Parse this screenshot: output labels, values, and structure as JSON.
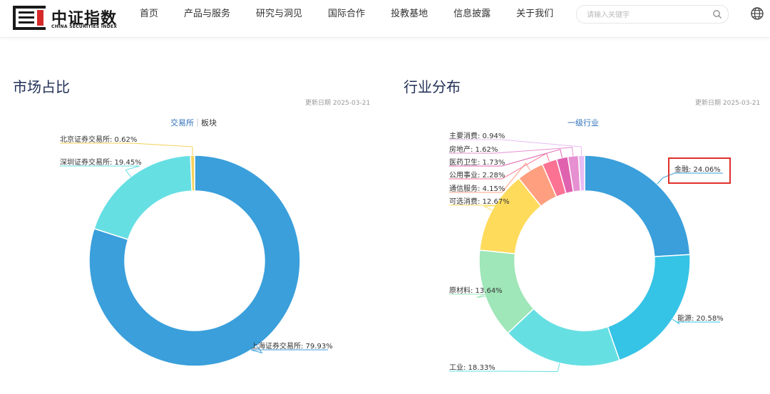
{
  "header": {
    "logo_cn": "中证指数",
    "logo_en": "CHINA SECURITIES INDEX",
    "nav": [
      "首页",
      "产品与服务",
      "研究与洞见",
      "国际合作",
      "投教基地",
      "信息披露",
      "关于我们"
    ],
    "search_placeholder": "请输入关键字",
    "icons": [
      "logo-icon",
      "search-icon",
      "globe-icon"
    ]
  },
  "market_panel": {
    "title": "市场占比",
    "updated": "更新日期  2025-03-21",
    "tabs": [
      "交易所",
      "板块"
    ],
    "active_tab": "交易所"
  },
  "industry_panel": {
    "title": "行业分布",
    "updated": "更新日期  2025-03-21",
    "tabs": [
      "一级行业"
    ]
  },
  "chart_data": [
    {
      "type": "pie",
      "variant": "donut",
      "title": "",
      "labels": [
        "上海证券交易所",
        "深圳证券交易所",
        "北京证券交易所"
      ],
      "values": [
        79.93,
        19.45,
        0.62
      ],
      "display_labels": [
        "上海证券交易所: 79.93%",
        "深圳证券交易所: 19.45%",
        "北京证券交易所: 0.62%"
      ],
      "colors": [
        "#3a9fdb",
        "#66dfe3",
        "#f5d15a"
      ]
    },
    {
      "type": "pie",
      "variant": "donut",
      "title": "",
      "labels": [
        "金融",
        "能源",
        "工业",
        "原材料",
        "可选消费",
        "通信服务",
        "公用事业",
        "医药卫生",
        "房地产",
        "主要消费"
      ],
      "values": [
        24.06,
        20.58,
        18.33,
        13.64,
        12.67,
        4.15,
        2.28,
        1.73,
        1.62,
        0.94
      ],
      "display_labels": [
        "金融: 24.06%",
        "能源: 20.58%",
        "工业: 18.33%",
        "原材料: 13.64%",
        "可选消费: 12.67%",
        "通信服务: 4.15%",
        "公用事业: 2.28%",
        "医药卫生: 1.73%",
        "房地产: 1.62%",
        "主要消费: 0.94%"
      ],
      "colors": [
        "#3a9fdb",
        "#35c3e6",
        "#66dfe3",
        "#9fe6b8",
        "#ffdb5c",
        "#ff9f7f",
        "#fb7293",
        "#e062ae",
        "#e690d1",
        "#e7bcf3"
      ],
      "highlighted": "金融"
    }
  ]
}
